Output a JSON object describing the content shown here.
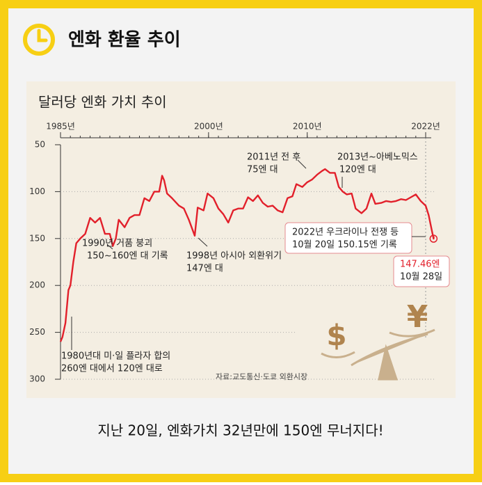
{
  "header": {
    "title": "엔화 환율 추이"
  },
  "chart_data": {
    "type": "line",
    "title": "달러당 엔화 가치 추이",
    "color": "#e2202b",
    "x": [
      1985.0,
      1985.2,
      1985.5,
      1985.8,
      1986.0,
      1986.3,
      1986.6,
      1987.0,
      1987.5,
      1988.0,
      1988.5,
      1989.0,
      1989.5,
      1990.0,
      1990.3,
      1990.6,
      1990.9,
      1991.5,
      1992.0,
      1992.5,
      1993.0,
      1993.5,
      1994.0,
      1994.5,
      1995.0,
      1995.3,
      1995.5,
      1995.8,
      1996.3,
      1997.0,
      1997.5,
      1998.0,
      1998.6,
      1998.9,
      1999.5,
      1999.9,
      2000.5,
      2001.0,
      2001.5,
      2002.0,
      2002.5,
      2003.0,
      2003.5,
      2004.0,
      2004.5,
      2005.0,
      2005.5,
      2006.0,
      2006.5,
      2007.0,
      2007.5,
      2008.0,
      2008.5,
      2008.9,
      2009.5,
      2010.0,
      2010.5,
      2011.0,
      2011.5,
      2011.8,
      2012.3,
      2012.8,
      2013.2,
      2013.6,
      2014.0,
      2014.5,
      2014.9,
      2015.5,
      2016.0,
      2016.5,
      2016.9,
      2017.5,
      2018.0,
      2018.5,
      2019.0,
      2019.5,
      2020.0,
      2020.5,
      2021.0,
      2021.5,
      2022.0,
      2022.3,
      2022.5,
      2022.7,
      2022.8,
      2022.82
    ],
    "values": [
      260,
      255,
      240,
      205,
      200,
      175,
      155,
      150,
      145,
      128,
      133,
      128,
      145,
      145,
      158,
      150,
      130,
      138,
      128,
      125,
      125,
      107,
      110,
      100,
      100,
      83,
      88,
      102,
      107,
      115,
      118,
      130,
      147,
      117,
      120,
      102,
      107,
      118,
      124,
      133,
      120,
      118,
      118,
      106,
      110,
      104,
      112,
      116,
      115,
      120,
      122,
      107,
      105,
      92,
      95,
      90,
      87,
      82,
      78,
      76,
      80,
      80,
      95,
      100,
      103,
      102,
      118,
      123,
      118,
      102,
      113,
      112,
      110,
      111,
      110,
      108,
      109,
      106,
      103,
      110,
      115,
      125,
      135,
      145,
      150.15,
      147.46
    ],
    "xlim": [
      1985,
      2023.6
    ],
    "ylim": [
      50,
      300
    ],
    "inverted_y": true,
    "yticks": [
      50,
      100,
      150,
      200,
      250,
      300
    ],
    "xticks": [
      {
        "value": 1985,
        "label": "1985년"
      },
      {
        "value": 2000,
        "label": "2000년"
      },
      {
        "value": 2010,
        "label": "2010년"
      },
      {
        "value": 2022,
        "label": "2022년"
      }
    ],
    "grid": true,
    "annotations": [
      [
        "1980년대 미·일 플라자 합의",
        "260엔 대에서 120엔 대로"
      ],
      [
        "1990년 거품 붕괴",
        "150~160엔 대 기록"
      ],
      [
        "1998년 아시아 외환위기",
        "147엔 대"
      ],
      [
        "2011년 전 후",
        "75엔 대"
      ],
      [
        "2013년~아베노믹스",
        "120엔 대"
      ],
      [
        "2022년 우크라이나 전쟁 등",
        "10월 20일 150.15엔 기록"
      ],
      [
        "147.46엔",
        "10월 28일"
      ]
    ],
    "source": "자료:교도통신·도쿄 외환시장",
    "symbols": [
      "$",
      "¥"
    ]
  },
  "caption": "지난 20일, 엔화가치 32년만에 150엔 무너지다!"
}
